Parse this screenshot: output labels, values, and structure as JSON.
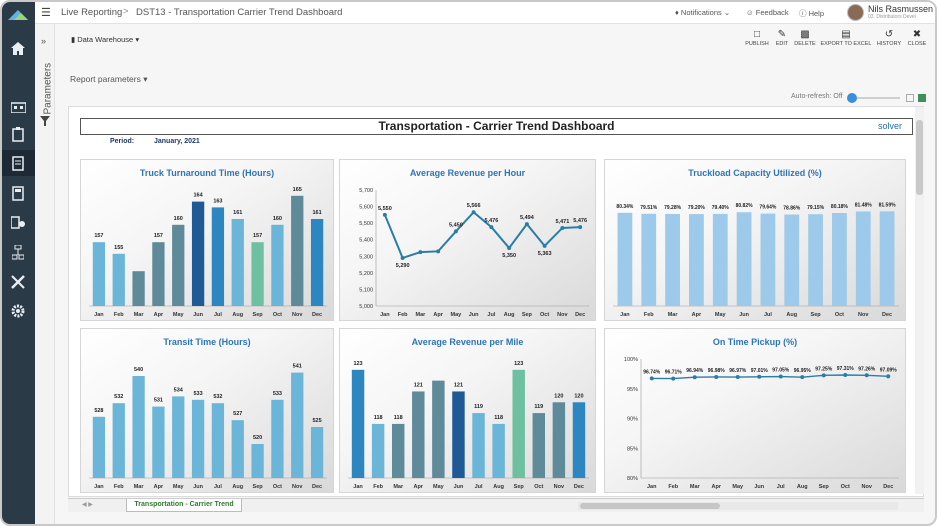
{
  "topbar": {
    "menu_icon": "hamburger-icon",
    "breadcrumb_1": "Live Reporting",
    "breadcrumb_sep": ">",
    "breadcrumb_2": "DST13 - Transportation Carrier Trend Dashboard",
    "notifications": "Notifications",
    "feedback": "Feedback",
    "help": "Help",
    "user_name": "Nils Rasmussen",
    "user_sub": "03. Distributors Devel"
  },
  "sidebar": {
    "parameters_label": "Parameters",
    "icons": [
      "home-icon",
      "org-chart-icon",
      "clipboard-icon",
      "report-icon",
      "calculator-icon",
      "import-icon",
      "hierarchy-icon",
      "tools-icon",
      "gear-icon"
    ]
  },
  "toolbar": {
    "data_warehouse": "Data Warehouse",
    "publish": "PUBLISH",
    "edit": "EDIT",
    "delete": "DELETE",
    "export": "EXPORT TO EXCEL",
    "history": "HISTORY",
    "close": "CLOSE"
  },
  "report_params": "Report parameters",
  "auto_refresh": "Auto-refresh: Off",
  "dashboard": {
    "title": "Transportation - Carrier Trend Dashboard",
    "logo": "solver",
    "period_label": "Period:",
    "period_value": "January, 2021",
    "sheet_tab": "Transportation - Carrier Trend"
  },
  "colors": {
    "dark_blue": "#1f5a96",
    "mid_blue": "#2e86c1",
    "light_blue": "#6bb5d9",
    "teal_gray": "#5f8a9a",
    "green": "#6fc0a0",
    "line_blue": "#2a7ea5",
    "pale_blue": "#9dc9ea"
  },
  "chart_data": [
    {
      "type": "bar",
      "title": "Truck Turnaround Time (Hours)",
      "categories": [
        "Jan",
        "Feb",
        "Mar",
        "Apr",
        "May",
        "Jun",
        "Jul",
        "Aug",
        "Sep",
        "Oct",
        "Nov",
        "Dec"
      ],
      "values": [
        157,
        155,
        152,
        157,
        160,
        164,
        163,
        161,
        157,
        160,
        165,
        161
      ],
      "labels": [
        "157",
        "155",
        "",
        "157",
        "160",
        "164",
        "163",
        "161",
        "157",
        "160",
        "165",
        "161"
      ],
      "ylim": [
        146,
        166
      ]
    },
    {
      "type": "line",
      "title": "Average Revenue per Hour",
      "categories": [
        "Jan",
        "Feb",
        "Mar",
        "Apr",
        "May",
        "Jun",
        "Jul",
        "Aug",
        "Sep",
        "Oct",
        "Nov",
        "Dec"
      ],
      "values": [
        5550,
        5290,
        5325,
        5330,
        5450,
        5566,
        5476,
        5350,
        5494,
        5363,
        5471,
        5476
      ],
      "labels": [
        "5,550",
        "5,290",
        "",
        "",
        "5,450",
        "5,566",
        "5,476",
        "5,350",
        "5,494",
        "5,363",
        "5,471",
        "5,476"
      ],
      "yticks": [
        "5,700",
        "5,600",
        "5,500",
        "5,400",
        "5,300",
        "5,200",
        "5,100",
        "5,000"
      ],
      "ylim": [
        5000,
        5700
      ]
    },
    {
      "type": "bar",
      "title": "Truckload Capacity Utilized (%)",
      "categories": [
        "Jan",
        "Feb",
        "Mar",
        "Apr",
        "May",
        "Jun",
        "Jul",
        "Aug",
        "Sep",
        "Oct",
        "Nov",
        "Dec"
      ],
      "values": [
        80.34,
        79.51,
        79.28,
        79.2,
        79.4,
        80.82,
        79.64,
        78.86,
        79.15,
        80.18,
        81.48,
        81.59
      ],
      "labels": [
        "80.34%",
        "79.51%",
        "79.28%",
        "79.20%",
        "79.40%",
        "80.82%",
        "79.64%",
        "78.86%",
        "79.15%",
        "80.18%",
        "81.48%",
        "81.59%"
      ],
      "ylim": [
        0,
        100
      ]
    },
    {
      "type": "bar",
      "title": "Transit Time (Hours)",
      "categories": [
        "Jan",
        "Feb",
        "Mar",
        "Apr",
        "May",
        "Jun",
        "Jul",
        "Aug",
        "Sep",
        "Oct",
        "Nov",
        "Dec"
      ],
      "values": [
        528,
        532,
        540,
        531,
        534,
        533,
        532,
        527,
        520,
        533,
        541,
        525
      ],
      "labels": [
        "528",
        "532",
        "540",
        "531",
        "534",
        "533",
        "532",
        "527",
        "520",
        "533",
        "541",
        "525"
      ],
      "ylim": [
        510,
        545
      ]
    },
    {
      "type": "bar",
      "title": "Average Revenue per Mile",
      "categories": [
        "Jan",
        "Feb",
        "Mar",
        "Apr",
        "May",
        "Jun",
        "Jul",
        "Aug",
        "Sep",
        "Oct",
        "Nov",
        "Dec"
      ],
      "values": [
        123,
        118,
        118,
        121,
        122,
        121,
        119,
        118,
        123,
        119,
        120,
        120
      ],
      "labels": [
        "123",
        "118",
        "118",
        "121",
        "",
        "121",
        "119",
        "118",
        "123",
        "119",
        "120",
        "120"
      ],
      "ylim": [
        113,
        124
      ]
    },
    {
      "type": "line",
      "title": "On Time Pickup (%)",
      "categories": [
        "Jan",
        "Feb",
        "Mar",
        "Apr",
        "May",
        "Jun",
        "Jul",
        "Aug",
        "Sep",
        "Oct",
        "Nov",
        "Dec"
      ],
      "values": [
        96.74,
        96.71,
        96.94,
        96.98,
        96.97,
        97.01,
        97.05,
        96.95,
        97.25,
        97.31,
        97.26,
        97.09
      ],
      "labels": [
        "96.74%",
        "96.71%",
        "96.94%",
        "96.98%",
        "96.97%",
        "97.01%",
        "97.05%",
        "96.95%",
        "97.25%",
        "97.31%",
        "97.26%",
        "97.09%"
      ],
      "yticks": [
        "100%",
        "95%",
        "90%",
        "85%",
        "80%"
      ],
      "ylim": [
        80,
        100
      ]
    }
  ]
}
